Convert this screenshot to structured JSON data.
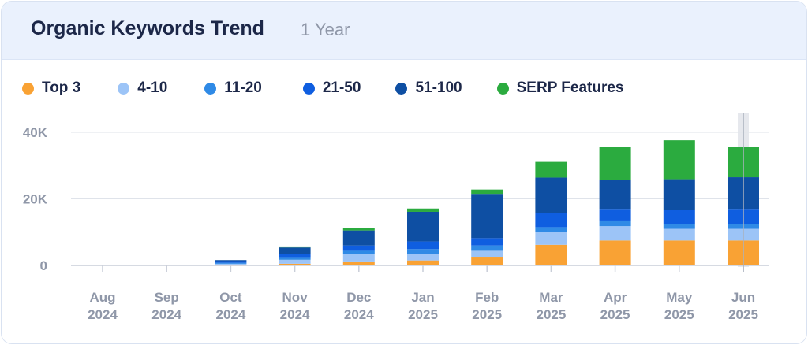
{
  "header": {
    "title": "Organic Keywords Trend",
    "period": "1 Year"
  },
  "chart_data": {
    "type": "bar",
    "stacked": true,
    "title": "Organic Keywords Trend",
    "grid": true,
    "legend_position": "top-left",
    "ylim": [
      0,
      45000
    ],
    "y_ticks": [
      {
        "value": 0,
        "label": "0"
      },
      {
        "value": 20000,
        "label": "20K"
      },
      {
        "value": 40000,
        "label": "40K"
      }
    ],
    "categories": [
      {
        "month": "Aug",
        "year": "2024"
      },
      {
        "month": "Sep",
        "year": "2024"
      },
      {
        "month": "Oct",
        "year": "2024"
      },
      {
        "month": "Nov",
        "year": "2024"
      },
      {
        "month": "Dec",
        "year": "2024"
      },
      {
        "month": "Jan",
        "year": "2025"
      },
      {
        "month": "Feb",
        "year": "2025"
      },
      {
        "month": "Mar",
        "year": "2025"
      },
      {
        "month": "Apr",
        "year": "2025"
      },
      {
        "month": "May",
        "year": "2025"
      },
      {
        "month": "Jun",
        "year": "2025"
      }
    ],
    "series": [
      {
        "name": "Top 3",
        "color": "#f9a234",
        "values": [
          0,
          0,
          100,
          500,
          1200,
          1500,
          2600,
          6200,
          7500,
          7500,
          7500
        ]
      },
      {
        "name": "4-10",
        "color": "#9cc4f7",
        "values": [
          0,
          0,
          400,
          1200,
          2200,
          2000,
          1800,
          3800,
          4300,
          3500,
          3500
        ]
      },
      {
        "name": "11-20",
        "color": "#2f8ae6",
        "values": [
          0,
          0,
          300,
          800,
          1000,
          1400,
          1600,
          1500,
          1700,
          1400,
          1500
        ]
      },
      {
        "name": "21-50",
        "color": "#0f5ee0",
        "values": [
          0,
          0,
          500,
          1000,
          1600,
          2300,
          2200,
          4200,
          3500,
          4300,
          4500
        ]
      },
      {
        "name": "51-100",
        "color": "#0e4fa3",
        "values": [
          0,
          0,
          300,
          1900,
          4500,
          8900,
          13300,
          10700,
          8600,
          9200,
          9500
        ]
      },
      {
        "name": "SERP Features",
        "color": "#2bab3f",
        "values": [
          0,
          0,
          0,
          300,
          800,
          1000,
          1300,
          4700,
          10000,
          11700,
          9200
        ]
      }
    ],
    "highlighted_category": "Jun"
  }
}
